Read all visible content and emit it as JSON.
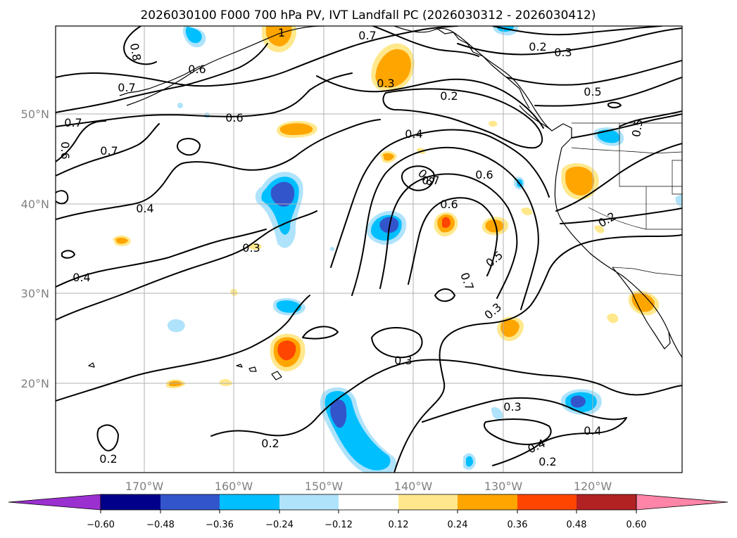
{
  "title": "2026030100 F000 700 hPa PV, IVT Landfall PC (2026030312 - 2026030412)",
  "map": {
    "lon_labels": [
      "170°W",
      "160°W",
      "150°W",
      "140°W",
      "130°W",
      "120°W"
    ],
    "lat_labels": [
      "50°N",
      "40°N",
      "30°N",
      "20°N"
    ],
    "gridlines": true
  },
  "colorbar": {
    "ticks": [
      "−0.60",
      "−0.48",
      "−0.36",
      "−0.24",
      "−0.12",
      "0.12",
      "0.24",
      "0.36",
      "0.48",
      "0.60"
    ],
    "colors": [
      "#9b30d0",
      "#00008b",
      "#3355cc",
      "#00bfff",
      "#afe3fb",
      "#ffffff",
      "#ffe88c",
      "#ffa500",
      "#ff4500",
      "#b22222",
      "#ff85a8"
    ],
    "extend": "both"
  },
  "contour_labels": [
    "0.8",
    "0.7",
    "0.6",
    "0.7",
    "0.7",
    "0.6",
    "0.6",
    "0.4",
    "0.3",
    "0.4",
    "0.7",
    "0.2",
    "0.3",
    "0.5",
    "0.3",
    "0.2",
    "0.4",
    "0.8",
    "0.7",
    "0.6",
    "0.6",
    "0.5",
    "0.7",
    "0.3",
    "0.3",
    "0.2",
    "0.2",
    "0.3",
    "0.4",
    "0.4",
    "0.2",
    "0.2",
    "1",
    "0.5"
  ],
  "shading_colors": {
    "light_blue": "#afe3fb",
    "cyan": "#00bfff",
    "blue": "#3355cc",
    "yellow": "#ffe88c",
    "orange": "#ffa500",
    "red_orange": "#ff4500"
  }
}
